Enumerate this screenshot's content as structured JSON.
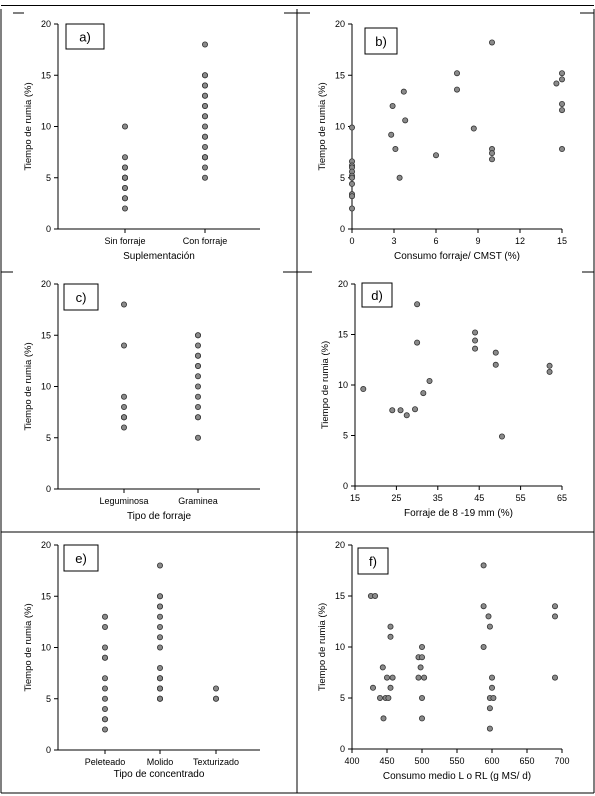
{
  "chart_data": [
    {
      "panel_label": "a)",
      "type": "scatter",
      "xlabel": "Suplementación",
      "ylabel": "Tiempo de rumia (%)",
      "ylim": [
        0,
        20
      ],
      "yticks": [
        0,
        5,
        10,
        15,
        20
      ],
      "categories": [
        "Sin forraje",
        "Con forraje"
      ],
      "points": [
        {
          "x": "Sin forraje",
          "y": 10
        },
        {
          "x": "Sin forraje",
          "y": 7
        },
        {
          "x": "Sin forraje",
          "y": 6
        },
        {
          "x": "Sin forraje",
          "y": 6
        },
        {
          "x": "Sin forraje",
          "y": 5
        },
        {
          "x": "Sin forraje",
          "y": 5
        },
        {
          "x": "Sin forraje",
          "y": 5
        },
        {
          "x": "Sin forraje",
          "y": 5
        },
        {
          "x": "Sin forraje",
          "y": 5
        },
        {
          "x": "Sin forraje",
          "y": 4
        },
        {
          "x": "Sin forraje",
          "y": 4
        },
        {
          "x": "Sin forraje",
          "y": 3
        },
        {
          "x": "Sin forraje",
          "y": 3
        },
        {
          "x": "Sin forraje",
          "y": 2
        },
        {
          "x": "Con forraje",
          "y": 18
        },
        {
          "x": "Con forraje",
          "y": 15
        },
        {
          "x": "Con forraje",
          "y": 15
        },
        {
          "x": "Con forraje",
          "y": 14
        },
        {
          "x": "Con forraje",
          "y": 14
        },
        {
          "x": "Con forraje",
          "y": 13
        },
        {
          "x": "Con forraje",
          "y": 13
        },
        {
          "x": "Con forraje",
          "y": 12
        },
        {
          "x": "Con forraje",
          "y": 12
        },
        {
          "x": "Con forraje",
          "y": 11
        },
        {
          "x": "Con forraje",
          "y": 11
        },
        {
          "x": "Con forraje",
          "y": 10
        },
        {
          "x": "Con forraje",
          "y": 9
        },
        {
          "x": "Con forraje",
          "y": 9
        },
        {
          "x": "Con forraje",
          "y": 8
        },
        {
          "x": "Con forraje",
          "y": 7
        },
        {
          "x": "Con forraje",
          "y": 7
        },
        {
          "x": "Con forraje",
          "y": 7
        },
        {
          "x": "Con forraje",
          "y": 7
        },
        {
          "x": "Con forraje",
          "y": 6
        },
        {
          "x": "Con forraje",
          "y": 5
        }
      ]
    },
    {
      "panel_label": "b)",
      "type": "scatter",
      "xlabel": "Consumo forraje/ CMST (%)",
      "ylabel": "Tiempo de rumia (%)",
      "xlim": [
        0,
        15
      ],
      "xticks": [
        0,
        3,
        6,
        9,
        12,
        15
      ],
      "ylim": [
        0,
        20
      ],
      "yticks": [
        0,
        5,
        10,
        15,
        20
      ],
      "points": [
        {
          "x": 0,
          "y": 9.9
        },
        {
          "x": 0,
          "y": 6.6
        },
        {
          "x": 0,
          "y": 6.2
        },
        {
          "x": 0,
          "y": 6.0
        },
        {
          "x": 0,
          "y": 5.6
        },
        {
          "x": 0,
          "y": 5.2
        },
        {
          "x": 0,
          "y": 5.0
        },
        {
          "x": 0,
          "y": 4.4
        },
        {
          "x": 0,
          "y": 3.4
        },
        {
          "x": 0,
          "y": 3.2
        },
        {
          "x": 0,
          "y": 2.0
        },
        {
          "x": 2.9,
          "y": 12.0
        },
        {
          "x": 2.8,
          "y": 9.2
        },
        {
          "x": 3.1,
          "y": 7.8
        },
        {
          "x": 3.4,
          "y": 5.0
        },
        {
          "x": 3.7,
          "y": 13.4
        },
        {
          "x": 3.8,
          "y": 10.6
        },
        {
          "x": 6.0,
          "y": 7.2
        },
        {
          "x": 7.5,
          "y": 15.2
        },
        {
          "x": 7.5,
          "y": 13.6
        },
        {
          "x": 8.7,
          "y": 9.8
        },
        {
          "x": 10.0,
          "y": 18.2
        },
        {
          "x": 10.0,
          "y": 7.8
        },
        {
          "x": 10.0,
          "y": 7.4
        },
        {
          "x": 10.0,
          "y": 6.8
        },
        {
          "x": 14.6,
          "y": 14.2
        },
        {
          "x": 15.0,
          "y": 15.2
        },
        {
          "x": 15.0,
          "y": 14.6
        },
        {
          "x": 15.0,
          "y": 12.2
        },
        {
          "x": 15.0,
          "y": 11.6
        },
        {
          "x": 15.0,
          "y": 7.8
        }
      ]
    },
    {
      "panel_label": "c)",
      "type": "scatter",
      "xlabel": "Tipo de forraje",
      "ylabel": "Tiempo de rumia (%)",
      "ylim": [
        0,
        20
      ],
      "yticks": [
        0,
        5,
        10,
        15,
        20
      ],
      "categories": [
        "Leguminosa",
        "Graminea"
      ],
      "points": [
        {
          "x": "Leguminosa",
          "y": 18
        },
        {
          "x": "Leguminosa",
          "y": 14
        },
        {
          "x": "Leguminosa",
          "y": 9
        },
        {
          "x": "Leguminosa",
          "y": 8
        },
        {
          "x": "Leguminosa",
          "y": 7
        },
        {
          "x": "Leguminosa",
          "y": 7
        },
        {
          "x": "Leguminosa",
          "y": 7
        },
        {
          "x": "Leguminosa",
          "y": 6
        },
        {
          "x": "Graminea",
          "y": 15
        },
        {
          "x": "Graminea",
          "y": 15
        },
        {
          "x": "Graminea",
          "y": 14
        },
        {
          "x": "Graminea",
          "y": 13
        },
        {
          "x": "Graminea",
          "y": 13
        },
        {
          "x": "Graminea",
          "y": 12
        },
        {
          "x": "Graminea",
          "y": 12
        },
        {
          "x": "Graminea",
          "y": 11
        },
        {
          "x": "Graminea",
          "y": 10
        },
        {
          "x": "Graminea",
          "y": 9
        },
        {
          "x": "Graminea",
          "y": 8
        },
        {
          "x": "Graminea",
          "y": 7
        },
        {
          "x": "Graminea",
          "y": 7
        },
        {
          "x": "Graminea",
          "y": 5
        }
      ]
    },
    {
      "panel_label": "d)",
      "type": "scatter",
      "xlabel": "Forraje de 8 -19 mm (%)",
      "ylabel": "Tiempo de rumia (%)",
      "xlim": [
        15,
        65
      ],
      "xticks": [
        15,
        25,
        35,
        45,
        55,
        65
      ],
      "ylim": [
        0,
        20
      ],
      "yticks": [
        0,
        5,
        10,
        15,
        20
      ],
      "points": [
        {
          "x": 17,
          "y": 9.6
        },
        {
          "x": 24,
          "y": 7.5
        },
        {
          "x": 26,
          "y": 7.5
        },
        {
          "x": 27.5,
          "y": 7.0
        },
        {
          "x": 29.5,
          "y": 7.6
        },
        {
          "x": 30,
          "y": 18.0
        },
        {
          "x": 30,
          "y": 14.2
        },
        {
          "x": 31.5,
          "y": 9.2
        },
        {
          "x": 33,
          "y": 10.4
        },
        {
          "x": 44,
          "y": 15.2
        },
        {
          "x": 44,
          "y": 14.4
        },
        {
          "x": 44,
          "y": 13.6
        },
        {
          "x": 49,
          "y": 13.2
        },
        {
          "x": 49,
          "y": 12.0
        },
        {
          "x": 50.5,
          "y": 4.9
        },
        {
          "x": 62,
          "y": 11.9
        },
        {
          "x": 62,
          "y": 11.3
        }
      ]
    },
    {
      "panel_label": "e)",
      "type": "scatter",
      "xlabel": "Tipo de concentrado",
      "ylabel": "Tiempo de rumia (%)",
      "ylim": [
        0,
        20
      ],
      "yticks": [
        0,
        5,
        10,
        15,
        20
      ],
      "categories": [
        "Peleteado",
        "Molido",
        "Texturizado"
      ],
      "points": [
        {
          "x": "Peleteado",
          "y": 13
        },
        {
          "x": "Peleteado",
          "y": 12
        },
        {
          "x": "Peleteado",
          "y": 10
        },
        {
          "x": "Peleteado",
          "y": 9
        },
        {
          "x": "Peleteado",
          "y": 9
        },
        {
          "x": "Peleteado",
          "y": 7
        },
        {
          "x": "Peleteado",
          "y": 6
        },
        {
          "x": "Peleteado",
          "y": 5
        },
        {
          "x": "Peleteado",
          "y": 4
        },
        {
          "x": "Peleteado",
          "y": 3
        },
        {
          "x": "Peleteado",
          "y": 3
        },
        {
          "x": "Peleteado",
          "y": 2
        },
        {
          "x": "Molido",
          "y": 18
        },
        {
          "x": "Molido",
          "y": 15
        },
        {
          "x": "Molido",
          "y": 15
        },
        {
          "x": "Molido",
          "y": 14
        },
        {
          "x": "Molido",
          "y": 14
        },
        {
          "x": "Molido",
          "y": 13
        },
        {
          "x": "Molido",
          "y": 12
        },
        {
          "x": "Molido",
          "y": 11
        },
        {
          "x": "Molido",
          "y": 10
        },
        {
          "x": "Molido",
          "y": 8
        },
        {
          "x": "Molido",
          "y": 7
        },
        {
          "x": "Molido",
          "y": 7
        },
        {
          "x": "Molido",
          "y": 7
        },
        {
          "x": "Molido",
          "y": 6
        },
        {
          "x": "Molido",
          "y": 6
        },
        {
          "x": "Molido",
          "y": 6
        },
        {
          "x": "Molido",
          "y": 5
        },
        {
          "x": "Molido",
          "y": 5
        },
        {
          "x": "Molido",
          "y": 5
        },
        {
          "x": "Texturizado",
          "y": 6
        },
        {
          "x": "Texturizado",
          "y": 5
        },
        {
          "x": "Texturizado",
          "y": 5
        }
      ]
    },
    {
      "panel_label": "f)",
      "type": "scatter",
      "xlabel": "Consumo medio L o RL (g MS/ d)",
      "ylabel": "Tiempo de rumia (%)",
      "xlim": [
        400,
        700
      ],
      "xticks": [
        400,
        450,
        500,
        550,
        600,
        650,
        700
      ],
      "ylim": [
        0,
        20
      ],
      "yticks": [
        0,
        5,
        10,
        15,
        20
      ],
      "points": [
        {
          "x": 427,
          "y": 15
        },
        {
          "x": 433,
          "y": 15
        },
        {
          "x": 430,
          "y": 6
        },
        {
          "x": 440,
          "y": 5
        },
        {
          "x": 444,
          "y": 8
        },
        {
          "x": 445,
          "y": 3
        },
        {
          "x": 448,
          "y": 5
        },
        {
          "x": 450,
          "y": 7
        },
        {
          "x": 452,
          "y": 5
        },
        {
          "x": 455,
          "y": 11
        },
        {
          "x": 455,
          "y": 12
        },
        {
          "x": 455,
          "y": 6
        },
        {
          "x": 458,
          "y": 7
        },
        {
          "x": 495,
          "y": 7
        },
        {
          "x": 495,
          "y": 9
        },
        {
          "x": 498,
          "y": 8
        },
        {
          "x": 500,
          "y": 10
        },
        {
          "x": 500,
          "y": 9
        },
        {
          "x": 500,
          "y": 5
        },
        {
          "x": 500,
          "y": 3
        },
        {
          "x": 503,
          "y": 7
        },
        {
          "x": 588,
          "y": 18
        },
        {
          "x": 588,
          "y": 14
        },
        {
          "x": 588,
          "y": 10
        },
        {
          "x": 595,
          "y": 13
        },
        {
          "x": 597,
          "y": 12
        },
        {
          "x": 597,
          "y": 5
        },
        {
          "x": 597,
          "y": 4
        },
        {
          "x": 597,
          "y": 2
        },
        {
          "x": 600,
          "y": 7
        },
        {
          "x": 600,
          "y": 6
        },
        {
          "x": 602,
          "y": 5
        },
        {
          "x": 690,
          "y": 14
        },
        {
          "x": 690,
          "y": 13
        },
        {
          "x": 690,
          "y": 7
        }
      ]
    }
  ]
}
